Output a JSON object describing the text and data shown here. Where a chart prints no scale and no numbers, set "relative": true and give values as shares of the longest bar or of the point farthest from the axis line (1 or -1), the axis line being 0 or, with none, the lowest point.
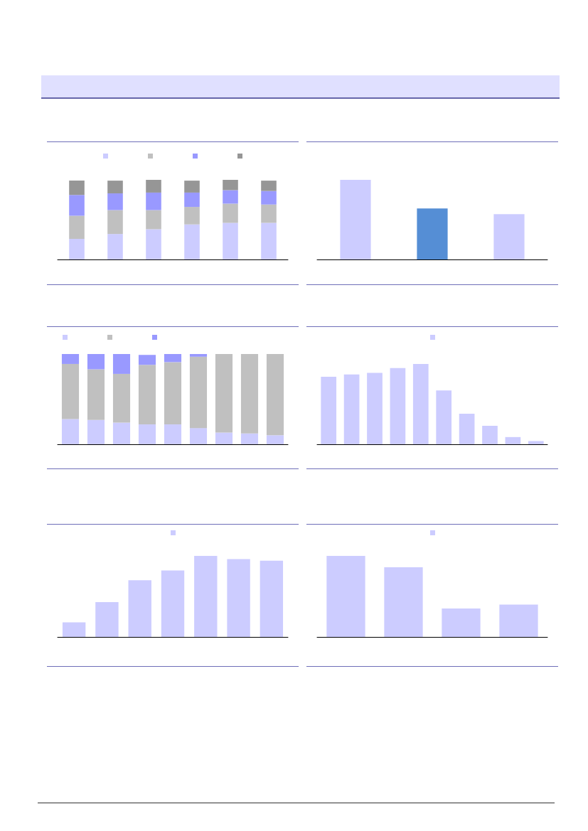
{
  "chart_data": [
    {
      "type": "bar",
      "relative": true,
      "stacked": true,
      "categories": [
        null,
        null,
        null,
        null,
        null,
        null
      ],
      "series": [
        {
          "color": "#ccccff",
          "values": [
            0.26,
            0.32,
            0.38,
            0.44,
            0.46,
            0.46
          ]
        },
        {
          "color": "#c0c0c0",
          "values": [
            0.29,
            0.3,
            0.24,
            0.22,
            0.24,
            0.23
          ]
        },
        {
          "color": "#9999ff",
          "values": [
            0.26,
            0.21,
            0.22,
            0.18,
            0.17,
            0.17
          ]
        },
        {
          "color": "#969696",
          "values": [
            0.18,
            0.16,
            0.16,
            0.15,
            0.13,
            0.13
          ]
        }
      ]
    },
    {
      "type": "bar",
      "relative": true,
      "categories": [
        null,
        null,
        null
      ],
      "values": [
        1,
        0.64,
        0.57
      ],
      "colors": [
        "#ccccff",
        "#558ed5",
        "#ccccff"
      ]
    },
    {
      "type": "bar",
      "relative": true,
      "stacked": true,
      "categories": [
        null,
        null,
        null,
        null,
        null,
        null,
        null,
        null,
        null
      ],
      "series": [
        {
          "color": "#ccccff",
          "values": [
            0.28,
            0.27,
            0.24,
            0.22,
            0.22,
            0.18,
            0.13,
            0.12,
            0.1
          ]
        },
        {
          "color": "#c0c0c0",
          "values": [
            0.61,
            0.56,
            0.54,
            0.66,
            0.69,
            0.79,
            0.87,
            0.88,
            0.9
          ]
        },
        {
          "color": "#9999ff",
          "values": [
            0.11,
            0.17,
            0.22,
            0.11,
            0.09,
            0.03,
            0,
            0,
            0
          ]
        }
      ]
    },
    {
      "type": "bar",
      "relative": true,
      "categories": [
        null,
        null,
        null,
        null,
        null,
        null,
        null,
        null,
        null,
        null
      ],
      "series": [
        {
          "color": "#ccccff",
          "values": [
            0.84,
            0.87,
            0.89,
            0.95,
            1,
            0.67,
            0.38,
            0.23,
            0.09,
            0.04
          ]
        }
      ]
    },
    {
      "type": "bar",
      "relative": true,
      "categories": [
        null,
        null,
        null,
        null,
        null,
        null,
        null
      ],
      "series": [
        {
          "color": "#ccccff",
          "values": [
            0.18,
            0.43,
            0.7,
            0.82,
            1,
            0.96,
            0.94
          ]
        }
      ]
    },
    {
      "type": "bar",
      "relative": true,
      "categories": [
        null,
        null,
        null,
        null
      ],
      "series": [
        {
          "color": "#ccccff",
          "values": [
            1,
            0.86,
            0.35,
            0.4
          ]
        }
      ]
    }
  ]
}
